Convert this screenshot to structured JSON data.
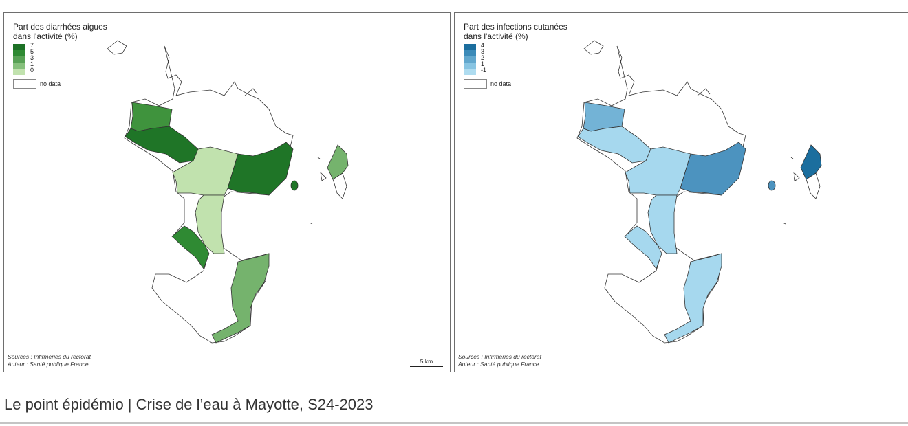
{
  "footer": {
    "title": "Le point épidémio | Crise de l’eau à Mayotte, S24-2023"
  },
  "maps": [
    {
      "legend_title_line1": "Part des diarrhées aigues",
      "legend_title_line2": "dans l'activité (%)",
      "legend_values": [
        "7",
        "5",
        "3",
        "1",
        "0"
      ],
      "legend_colors": [
        "#1d7126",
        "#2f8a33",
        "#58a155",
        "#86c07c",
        "#c1e2ae"
      ],
      "no_data_label": "no data",
      "source_line1": "Sources : Infirmeries du rectorat",
      "source_line2": "Auteur : Santé publique France",
      "scale_label": "5 km",
      "regions": {
        "nw_top": "#3f933d",
        "nw_bottom": "#1f7527",
        "center": "#c1e2ae",
        "east": "#1f7527",
        "center_south": "#c1e2ae",
        "west_south": "#2f8a33",
        "south_east": "#75b36d",
        "petite_terre": "#75b36d",
        "islet": "#1f7527"
      }
    },
    {
      "legend_title_line1": "Part des infections cutanées",
      "legend_title_line2": "dans l'activité (%)",
      "legend_values": [
        "4",
        "3",
        "2",
        "1",
        "-1"
      ],
      "legend_colors": [
        "#1b6e9e",
        "#3b8ab8",
        "#61a7cd",
        "#87c4e2",
        "#aedcf0"
      ],
      "no_data_label": "no data",
      "source_line1": "Sources : Infirmeries du rectorat",
      "source_line2": "Auteur : Santé publique France",
      "regions": {
        "nw_top": "#73b3d6",
        "nw_bottom": "#a6d8ee",
        "center": "#a6d8ee",
        "east": "#4c93bf",
        "center_south": "#a6d8ee",
        "west_south": "#a6d8ee",
        "south_east": "#a6d8ee",
        "petite_terre": "#1b6e9e",
        "islet": "#4c93bf"
      }
    }
  ]
}
